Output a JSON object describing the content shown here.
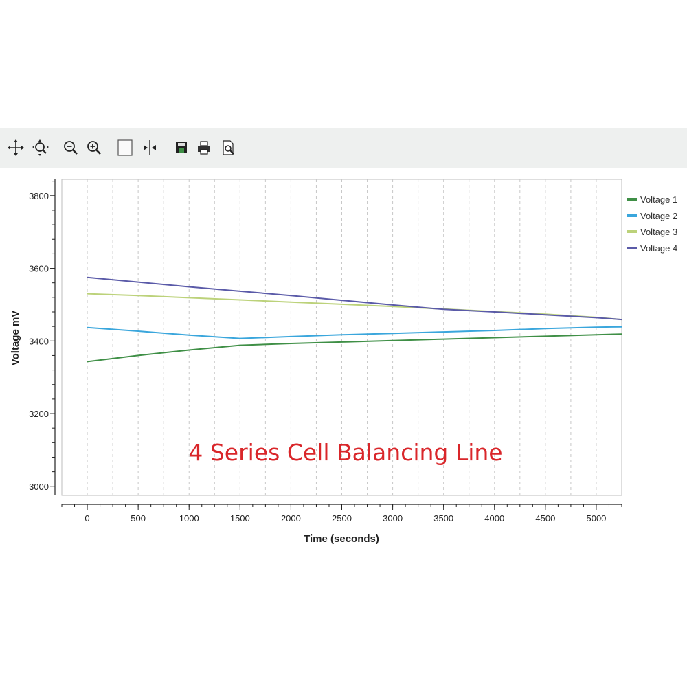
{
  "toolbar": {
    "buttons": [
      {
        "name": "pan-button",
        "icon": "move-arrows-icon"
      },
      {
        "name": "zoom-box-button",
        "icon": "zoom-magnifier-icon"
      },
      {
        "name": "zoom-out-button",
        "icon": "zoom-out-icon"
      },
      {
        "name": "zoom-in-button",
        "icon": "zoom-in-icon"
      },
      {
        "name": "select-box-button",
        "icon": "rectangle-select-icon"
      },
      {
        "name": "cursor-split-button",
        "icon": "vertical-cursor-icon"
      },
      {
        "name": "save-button",
        "icon": "floppy-disk-icon"
      },
      {
        "name": "print-button",
        "icon": "printer-icon"
      },
      {
        "name": "print-preview-button",
        "icon": "print-preview-icon"
      }
    ]
  },
  "colors": {
    "voltage1": "#3f8f46",
    "voltage2": "#3aa6dc",
    "voltage3": "#bcd27a",
    "voltage4": "#5a5aa8",
    "annotation": "#d9262a",
    "grid": "#c8c8c8"
  },
  "chart_data": {
    "type": "line",
    "title": "",
    "annotation": "4 Series Cell Balancing Line",
    "xlabel": "Time (seconds)",
    "ylabel": "Voltage mV",
    "xlim": [
      -250,
      5250
    ],
    "ylim": [
      2975,
      3845
    ],
    "xticks": [
      0,
      500,
      1000,
      1500,
      2000,
      2500,
      3000,
      3500,
      4000,
      4500,
      5000
    ],
    "yticks": [
      3000,
      3200,
      3400,
      3600,
      3800
    ],
    "grid": "vertical dashed",
    "legend_position": "right",
    "series": [
      {
        "name": "Voltage 1",
        "color": "#3f8f46",
        "x": [
          0,
          500,
          1000,
          1500,
          2000,
          2500,
          3000,
          3500,
          4000,
          4500,
          5000,
          5250
        ],
        "y": [
          3343,
          3360,
          3375,
          3388,
          3393,
          3397,
          3401,
          3405,
          3409,
          3413,
          3417,
          3419
        ]
      },
      {
        "name": "Voltage 2",
        "color": "#3aa6dc",
        "x": [
          0,
          500,
          1000,
          1500,
          2000,
          2500,
          3000,
          3500,
          4000,
          4500,
          5000,
          5250
        ],
        "y": [
          3437,
          3427,
          3416,
          3407,
          3412,
          3417,
          3421,
          3425,
          3429,
          3434,
          3438,
          3439
        ]
      },
      {
        "name": "Voltage 3",
        "color": "#bcd27a",
        "x": [
          0,
          500,
          1000,
          1500,
          2000,
          2500,
          3000,
          3500,
          4000,
          4500,
          5000,
          5250
        ],
        "y": [
          3530,
          3525,
          3519,
          3513,
          3507,
          3501,
          3495,
          3488,
          3481,
          3474,
          3465,
          3459
        ]
      },
      {
        "name": "Voltage 4",
        "color": "#5a5aa8",
        "x": [
          0,
          500,
          1000,
          1500,
          2000,
          2500,
          3000,
          3500,
          4000,
          4500,
          5000,
          5250
        ],
        "y": [
          3575,
          3562,
          3549,
          3537,
          3525,
          3512,
          3499,
          3487,
          3480,
          3472,
          3464,
          3459
        ]
      }
    ]
  }
}
